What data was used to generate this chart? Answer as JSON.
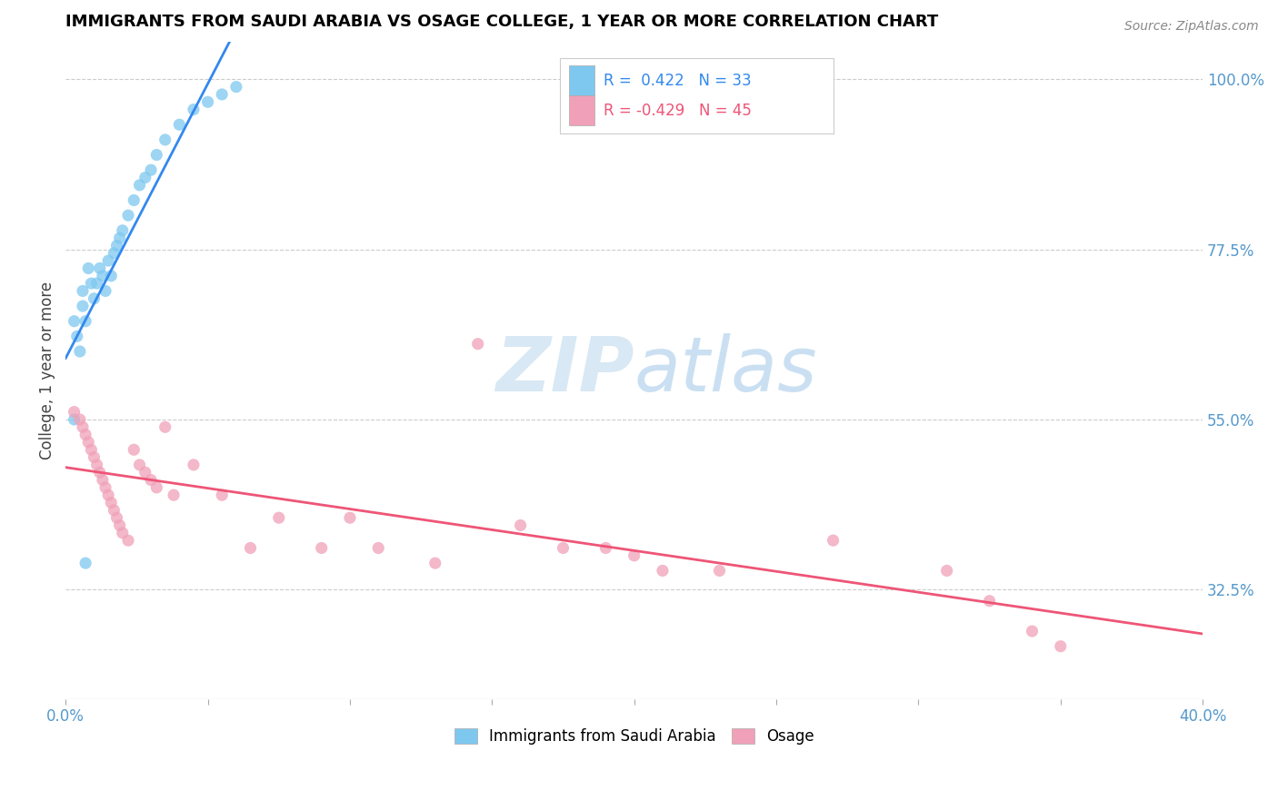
{
  "title": "IMMIGRANTS FROM SAUDI ARABIA VS OSAGE COLLEGE, 1 YEAR OR MORE CORRELATION CHART",
  "source": "Source: ZipAtlas.com",
  "xlabel": "",
  "ylabel": "College, 1 year or more",
  "xlim": [
    0.0,
    0.4
  ],
  "ylim": [
    0.18,
    1.05
  ],
  "xticks": [
    0.0,
    0.05,
    0.1,
    0.15,
    0.2,
    0.25,
    0.3,
    0.35,
    0.4
  ],
  "xticklabels": [
    "0.0%",
    "",
    "",
    "",
    "",
    "",
    "",
    "",
    "40.0%"
  ],
  "right_yticks": [
    1.0,
    0.775,
    0.55,
    0.325
  ],
  "right_yticklabels": [
    "100.0%",
    "77.5%",
    "55.0%",
    "32.5%"
  ],
  "blue_color": "#7ec8f0",
  "pink_color": "#f0a0b8",
  "blue_line_color": "#3388ee",
  "pink_line_color": "#ee5577",
  "R_blue": 0.422,
  "N_blue": 33,
  "R_pink": -0.429,
  "N_pink": 45,
  "watermark_zip": "ZIP",
  "watermark_atlas": "atlas",
  "legend_series1": "Immigrants from Saudi Arabia",
  "legend_series2": "Osage",
  "blue_x": [
    0.003,
    0.004,
    0.005,
    0.006,
    0.006,
    0.007,
    0.008,
    0.009,
    0.01,
    0.011,
    0.012,
    0.013,
    0.014,
    0.015,
    0.016,
    0.017,
    0.018,
    0.019,
    0.02,
    0.022,
    0.024,
    0.026,
    0.028,
    0.03,
    0.032,
    0.035,
    0.04,
    0.045,
    0.05,
    0.055,
    0.06,
    0.003,
    0.007
  ],
  "blue_y": [
    0.68,
    0.66,
    0.64,
    0.7,
    0.72,
    0.68,
    0.75,
    0.73,
    0.71,
    0.73,
    0.75,
    0.74,
    0.72,
    0.76,
    0.74,
    0.77,
    0.78,
    0.79,
    0.8,
    0.82,
    0.84,
    0.86,
    0.87,
    0.88,
    0.9,
    0.92,
    0.94,
    0.96,
    0.97,
    0.98,
    0.99,
    0.55,
    0.36
  ],
  "pink_x": [
    0.003,
    0.005,
    0.006,
    0.007,
    0.008,
    0.009,
    0.01,
    0.011,
    0.012,
    0.013,
    0.014,
    0.015,
    0.016,
    0.017,
    0.018,
    0.019,
    0.02,
    0.022,
    0.024,
    0.026,
    0.028,
    0.03,
    0.032,
    0.035,
    0.038,
    0.045,
    0.055,
    0.065,
    0.075,
    0.09,
    0.1,
    0.11,
    0.13,
    0.145,
    0.16,
    0.175,
    0.19,
    0.2,
    0.21,
    0.23,
    0.27,
    0.31,
    0.325,
    0.34,
    0.35
  ],
  "pink_y": [
    0.56,
    0.55,
    0.54,
    0.53,
    0.52,
    0.51,
    0.5,
    0.49,
    0.48,
    0.47,
    0.46,
    0.45,
    0.44,
    0.43,
    0.42,
    0.41,
    0.4,
    0.39,
    0.51,
    0.49,
    0.48,
    0.47,
    0.46,
    0.54,
    0.45,
    0.49,
    0.45,
    0.38,
    0.42,
    0.38,
    0.42,
    0.38,
    0.36,
    0.65,
    0.41,
    0.38,
    0.38,
    0.37,
    0.35,
    0.35,
    0.39,
    0.35,
    0.31,
    0.27,
    0.25
  ],
  "grid_color": "#cccccc",
  "background_color": "#ffffff"
}
